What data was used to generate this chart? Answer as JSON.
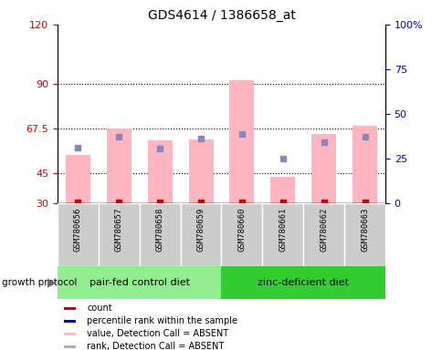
{
  "title": "GDS4614 / 1386658_at",
  "samples": [
    "GSM780656",
    "GSM780657",
    "GSM780658",
    "GSM780659",
    "GSM780660",
    "GSM780661",
    "GSM780662",
    "GSM780663"
  ],
  "pink_bar_top": [
    54.0,
    67.5,
    61.5,
    62.0,
    92.0,
    43.0,
    65.0,
    69.0
  ],
  "blue_square_y": [
    58.0,
    63.5,
    57.5,
    62.5,
    65.0,
    52.5,
    60.5,
    63.5
  ],
  "bar_bottom": 30.0,
  "ylim_left": [
    30,
    120
  ],
  "ylim_right": [
    0,
    100
  ],
  "yticks_left": [
    30,
    45,
    67.5,
    90,
    120
  ],
  "yticks_right": [
    0,
    25,
    50,
    75,
    100
  ],
  "ytick_labels_left": [
    "30",
    "45",
    "67.5",
    "90",
    "120"
  ],
  "ytick_labels_right": [
    "0",
    "25",
    "50",
    "75",
    "100%"
  ],
  "left_axis_color": "#cc0000",
  "right_axis_color": "#0000cc",
  "pink_bar_color": "#ffb6c1",
  "blue_square_color": "#8888bb",
  "red_dot_color": "#cc0000",
  "group_info": [
    {
      "label": "pair-fed control diet",
      "start": 0,
      "end": 3,
      "color": "#90ee90"
    },
    {
      "label": "zinc-deficient diet",
      "start": 4,
      "end": 7,
      "color": "#33cc33"
    }
  ],
  "legend_items": [
    {
      "label": "count",
      "color": "#cc0000"
    },
    {
      "label": "percentile rank within the sample",
      "color": "#0000cc"
    },
    {
      "label": "value, Detection Call = ABSENT",
      "color": "#ffb6c1"
    },
    {
      "label": "rank, Detection Call = ABSENT",
      "color": "#aaaadd"
    }
  ],
  "title_fontsize": 10,
  "bar_width": 0.6,
  "sample_box_color": "#cccccc",
  "growth_protocol_label": "growth protocol"
}
